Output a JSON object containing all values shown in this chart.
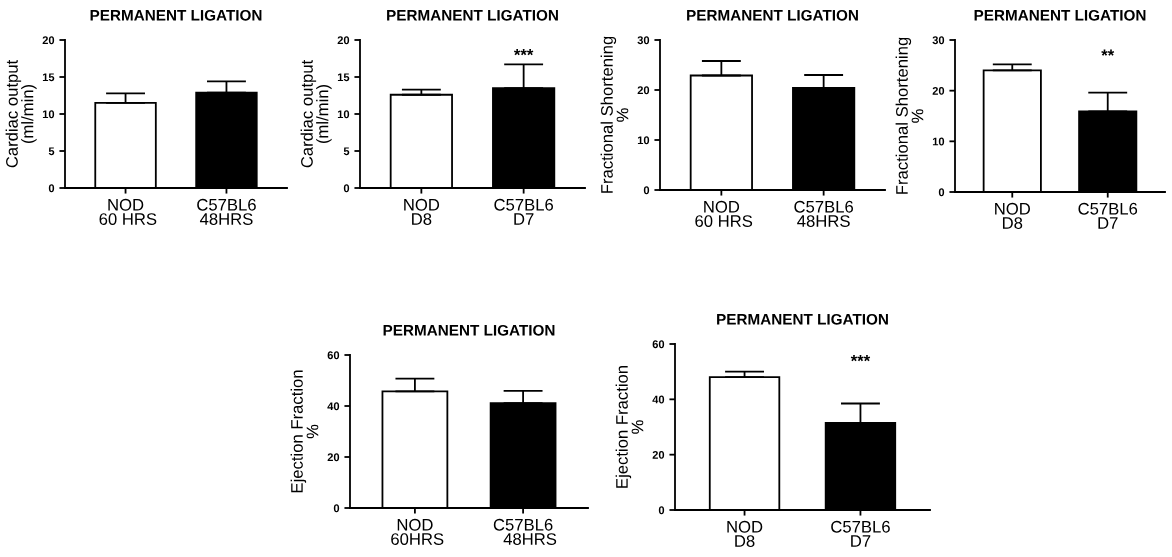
{
  "chart_data": [
    {
      "type": "bar",
      "title": "PERMANENT LIGATION",
      "ylabel": "Cardiac output\n(ml/min)",
      "categories": [
        "NOD\n 60 HRS",
        "C57BL6\n48HRS"
      ],
      "values": [
        11.5,
        12.9
      ],
      "colors": [
        "#ffffff",
        "#000000"
      ],
      "errors": [
        [
          11.5,
          12.8
        ],
        [
          12.9,
          14.4
        ]
      ],
      "ylim": [
        0,
        20
      ],
      "yticks": [
        0,
        5,
        10,
        15,
        20
      ],
      "grid": false
    },
    {
      "type": "bar",
      "title": "PERMANENT LIGATION",
      "ylabel": "Cardiac output\n(ml/min)",
      "categories": [
        "NOD\nD8",
        "C57BL6\nD7"
      ],
      "values": [
        12.6,
        13.5
      ],
      "colors": [
        "#ffffff",
        "#000000"
      ],
      "errors": [
        [
          12.6,
          13.3
        ],
        [
          13.5,
          16.7
        ]
      ],
      "ylim": [
        0,
        20
      ],
      "yticks": [
        0,
        5,
        10,
        15,
        20
      ],
      "grid": false,
      "annotations": [
        "***"
      ]
    },
    {
      "type": "bar",
      "title": "PERMANENT LIGATION",
      "ylabel": "Fractional Shortening\n%",
      "categories": [
        "NOD\n 60 HRS",
        "C57BL6\n48HRS"
      ],
      "values": [
        22.9,
        20.4
      ],
      "colors": [
        "#ffffff",
        "#000000"
      ],
      "errors": [
        [
          22.9,
          25.8
        ],
        [
          20.4,
          23.0
        ]
      ],
      "ylim": [
        0,
        30
      ],
      "yticks": [
        0,
        10,
        20,
        30
      ],
      "grid": false
    },
    {
      "type": "bar",
      "title": "PERMANENT LIGATION",
      "ylabel": "Fractional Shortening\n%",
      "categories": [
        "NOD\nD8",
        "C57BL6\nD7"
      ],
      "values": [
        24.0,
        15.9
      ],
      "colors": [
        "#ffffff",
        "#000000"
      ],
      "errors": [
        [
          24.0,
          25.2
        ],
        [
          15.9,
          19.6
        ]
      ],
      "ylim": [
        0,
        30
      ],
      "yticks": [
        0,
        10,
        20,
        30
      ],
      "grid": false,
      "annotations": [
        "**"
      ]
    },
    {
      "type": "bar",
      "title": "PERMANENT LIGATION",
      "ylabel": "Ejection Fraction\n%",
      "categories": [
        "NOD\n 60HRS",
        "C57BL6\n   48HRS"
      ],
      "values": [
        45.7,
        41.1
      ],
      "colors": [
        "#ffffff",
        "#000000"
      ],
      "errors": [
        [
          45.7,
          50.7
        ],
        [
          41.1,
          45.9
        ]
      ],
      "ylim": [
        0,
        60
      ],
      "yticks": [
        0,
        20,
        40,
        60
      ],
      "grid": false
    },
    {
      "type": "bar",
      "title": "PERMANENT LIGATION",
      "ylabel": "Ejection Fraction\n%",
      "categories": [
        "NOD\nD8",
        "C57BL6\nD7"
      ],
      "values": [
        48.0,
        31.5
      ],
      "colors": [
        "#ffffff",
        "#000000"
      ],
      "errors": [
        [
          48.0,
          50.0
        ],
        [
          31.5,
          38.5
        ]
      ],
      "ylim": [
        0,
        60
      ],
      "yticks": [
        0,
        20,
        40,
        60
      ],
      "grid": false,
      "annotations": [
        "***"
      ]
    }
  ]
}
